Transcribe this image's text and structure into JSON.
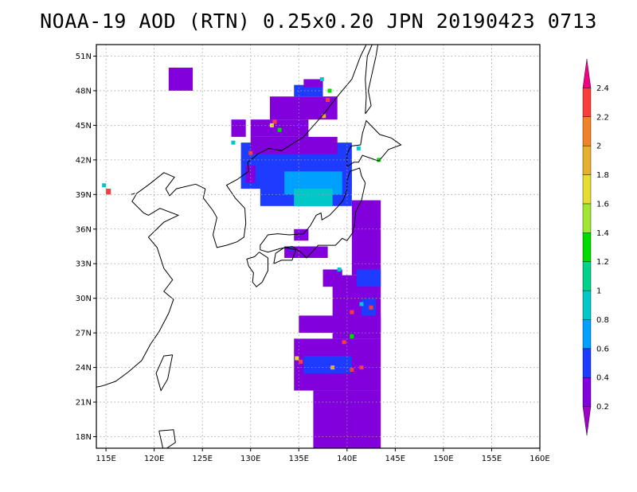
{
  "title": "NOAA-19 AOD (RTN) 0.25x0.20 JPN 20190423 0713",
  "map": {
    "lon_range": [
      114,
      160
    ],
    "lat_range": [
      17,
      52
    ],
    "lon_ticks": [
      {
        "value": 115,
        "label": "115E"
      },
      {
        "value": 120,
        "label": "120E"
      },
      {
        "value": 125,
        "label": "125E"
      },
      {
        "value": 130,
        "label": "130E"
      },
      {
        "value": 135,
        "label": "135E"
      },
      {
        "value": 140,
        "label": "140E"
      },
      {
        "value": 145,
        "label": "145E"
      },
      {
        "value": 150,
        "label": "150E"
      },
      {
        "value": 155,
        "label": "155E"
      },
      {
        "value": 160,
        "label": "160E"
      }
    ],
    "lat_ticks": [
      {
        "value": 18,
        "label": "18N"
      },
      {
        "value": 21,
        "label": "21N"
      },
      {
        "value": 24,
        "label": "24N"
      },
      {
        "value": 27,
        "label": "27N"
      },
      {
        "value": 30,
        "label": "30N"
      },
      {
        "value": 33,
        "label": "33N"
      },
      {
        "value": 36,
        "label": "36N"
      },
      {
        "value": 39,
        "label": "39N"
      },
      {
        "value": 42,
        "label": "42N"
      },
      {
        "value": 45,
        "label": "45N"
      },
      {
        "value": 48,
        "label": "48N"
      },
      {
        "value": 51,
        "label": "51N"
      }
    ],
    "gridlines": "dotted",
    "aod_regions": [
      {
        "lon": [
          136.5,
          143.5
        ],
        "lat": [
          17.0,
          22.0
        ],
        "aod": 0.3
      },
      {
        "lon": [
          134.5,
          143.5
        ],
        "lat": [
          22.0,
          26.5
        ],
        "aod": 0.3
      },
      {
        "lon": [
          138.5,
          143.5
        ],
        "lat": [
          26.5,
          32.0
        ],
        "aod": 0.3
      },
      {
        "lon": [
          140.5,
          143.5
        ],
        "lat": [
          32.0,
          38.5
        ],
        "aod": 0.3
      },
      {
        "lon": [
          135.0,
          139.5
        ],
        "lat": [
          27.0,
          28.5
        ],
        "aod": 0.3
      },
      {
        "lon": [
          135.5,
          140.5
        ],
        "lat": [
          23.5,
          25.0
        ],
        "aod": 0.45
      },
      {
        "lon": [
          141.0,
          143.5
        ],
        "lat": [
          31.0,
          32.5
        ],
        "aod": 0.45
      },
      {
        "lon": [
          141.5,
          143.0
        ],
        "lat": [
          28.5,
          30.0
        ],
        "aod": 0.55
      },
      {
        "lon": [
          129.0,
          140.5
        ],
        "lat": [
          39.5,
          43.5
        ],
        "aod": 0.45
      },
      {
        "lon": [
          131.0,
          140.5
        ],
        "lat": [
          38.0,
          42.0
        ],
        "aod": 0.6
      },
      {
        "lon": [
          133.5,
          139.5
        ],
        "lat": [
          39.0,
          41.0
        ],
        "aod": 0.7
      },
      {
        "lon": [
          134.5,
          138.5
        ],
        "lat": [
          38.0,
          39.5
        ],
        "aod": 0.9
      },
      {
        "lon": [
          129.5,
          130.5
        ],
        "lat": [
          40.0,
          41.5
        ],
        "aod": 0.3
      },
      {
        "lon": [
          130.0,
          139.0
        ],
        "lat": [
          42.5,
          44.0
        ],
        "aod": 0.3
      },
      {
        "lon": [
          130.0,
          136.0
        ],
        "lat": [
          44.0,
          45.5
        ],
        "aod": 0.3
      },
      {
        "lon": [
          132.0,
          139.0
        ],
        "lat": [
          45.5,
          47.5
        ],
        "aod": 0.3
      },
      {
        "lon": [
          134.5,
          137.5
        ],
        "lat": [
          47.5,
          48.5
        ],
        "aod": 0.45
      },
      {
        "lon": [
          135.5,
          137.5
        ],
        "lat": [
          48.3,
          49.0
        ],
        "aod": 0.3
      },
      {
        "lon": [
          128.0,
          129.5
        ],
        "lat": [
          44.0,
          45.5
        ],
        "aod": 0.3
      },
      {
        "lon": [
          121.5,
          124.0
        ],
        "lat": [
          48.0,
          50.0
        ],
        "aod": 0.3
      },
      {
        "lon": [
          133.5,
          138.0
        ],
        "lat": [
          33.5,
          34.5
        ],
        "aod": 0.3
      },
      {
        "lon": [
          134.5,
          136.0
        ],
        "lat": [
          35.0,
          36.0
        ],
        "aod": 0.3
      },
      {
        "lon": [
          137.5,
          139.5
        ],
        "lat": [
          31.0,
          32.5
        ],
        "aod": 0.3
      },
      {
        "lon": [
          143.0,
          143.5
        ],
        "lat": [
          27.0,
          28.5
        ],
        "aod": 0.3
      },
      {
        "lon": [
          115.0,
          115.5
        ],
        "lat": [
          39.0,
          39.5
        ],
        "aod": 2.3
      }
    ],
    "aod_points": [
      {
        "lon": 140.5,
        "lat": 23.8,
        "aod": 2.3
      },
      {
        "lon": 138.5,
        "lat": 24.0,
        "aod": 1.8
      },
      {
        "lon": 141.5,
        "lat": 24.0,
        "aod": 2.3
      },
      {
        "lon": 139.7,
        "lat": 26.2,
        "aod": 2.3
      },
      {
        "lon": 140.5,
        "lat": 26.7,
        "aod": 1.2
      },
      {
        "lon": 134.8,
        "lat": 24.8,
        "aod": 1.6
      },
      {
        "lon": 140.5,
        "lat": 28.8,
        "aod": 2.3
      },
      {
        "lon": 141.5,
        "lat": 29.5,
        "aod": 0.9
      },
      {
        "lon": 142.5,
        "lat": 29.2,
        "aod": 2.3
      },
      {
        "lon": 143.3,
        "lat": 42.0,
        "aod": 1.2
      },
      {
        "lon": 141.2,
        "lat": 43.0,
        "aod": 0.9
      },
      {
        "lon": 138.0,
        "lat": 47.2,
        "aod": 2.3
      },
      {
        "lon": 137.6,
        "lat": 45.8,
        "aod": 1.8
      },
      {
        "lon": 132.5,
        "lat": 45.3,
        "aod": 2.3
      },
      {
        "lon": 132.2,
        "lat": 45.0,
        "aod": 1.6
      },
      {
        "lon": 133.0,
        "lat": 44.6,
        "aod": 1.2
      },
      {
        "lon": 138.2,
        "lat": 48.0,
        "aod": 1.2
      },
      {
        "lon": 137.4,
        "lat": 49.0,
        "aod": 0.9
      },
      {
        "lon": 128.2,
        "lat": 43.5,
        "aod": 0.9
      },
      {
        "lon": 130.0,
        "lat": 42.6,
        "aod": 2.3
      },
      {
        "lon": 139.2,
        "lat": 32.5,
        "aod": 0.9
      },
      {
        "lon": 114.8,
        "lat": 39.8,
        "aod": 0.9
      },
      {
        "lon": 135.2,
        "lat": 24.5,
        "aod": 2.3
      },
      {
        "lon": 134.2,
        "lat": 34.3,
        "aod": 0.55
      }
    ]
  },
  "colorbar": {
    "labels": [
      "0.2",
      "0.4",
      "0.6",
      "0.8",
      "1",
      "1.2",
      "1.4",
      "1.6",
      "1.8",
      "2",
      "2.2",
      "2.4"
    ],
    "colors": [
      "#a000c8",
      "#8200dc",
      "#1e3cff",
      "#00a0ff",
      "#00c8c8",
      "#00d28c",
      "#00dc00",
      "#a0e632",
      "#e6dc32",
      "#e6af2d",
      "#f08228",
      "#fa3c3c",
      "#f00082"
    ]
  }
}
